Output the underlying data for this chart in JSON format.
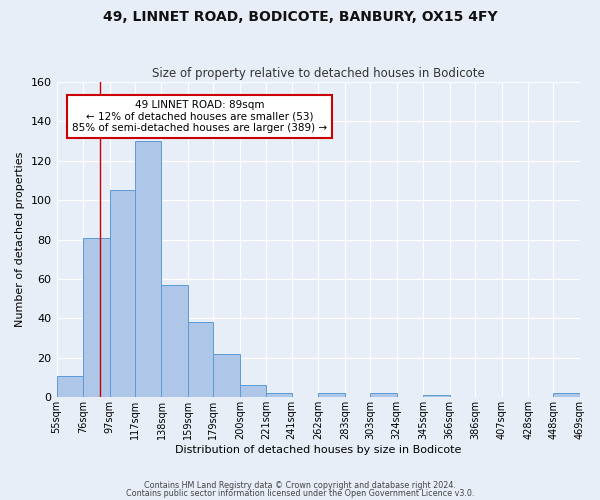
{
  "title1": "49, LINNET ROAD, BODICOTE, BANBURY, OX15 4FY",
  "title2": "Size of property relative to detached houses in Bodicote",
  "xlabel": "Distribution of detached houses by size in Bodicote",
  "ylabel": "Number of detached properties",
  "bar_edges": [
    55,
    76,
    97,
    117,
    138,
    159,
    179,
    200,
    221,
    241,
    262,
    283,
    303,
    324,
    345,
    366,
    386,
    407,
    428,
    448,
    469
  ],
  "bar_heights": [
    11,
    81,
    105,
    130,
    57,
    38,
    22,
    6,
    2,
    0,
    2,
    0,
    2,
    0,
    1,
    0,
    0,
    0,
    0,
    2
  ],
  "bar_color": "#aec6e8",
  "bar_edge_color": "#5b9bd5",
  "property_line_x": 89,
  "property_line_color": "#cc0000",
  "annotation_text": "49 LINNET ROAD: 89sqm\n← 12% of detached houses are smaller (53)\n85% of semi-detached houses are larger (389) →",
  "annotation_box_color": "#ffffff",
  "annotation_box_edge": "#cc0000",
  "footer1": "Contains HM Land Registry data © Crown copyright and database right 2024.",
  "footer2": "Contains public sector information licensed under the Open Government Licence v3.0.",
  "ylim": [
    0,
    160
  ],
  "background_color": "#e8eef8",
  "plot_bg_color": "#e8eef8",
  "grid_color": "#ffffff",
  "tick_label_fontsize": 7,
  "ylabel_fontsize": 8,
  "title1_fontsize": 10,
  "title2_fontsize": 8.5
}
